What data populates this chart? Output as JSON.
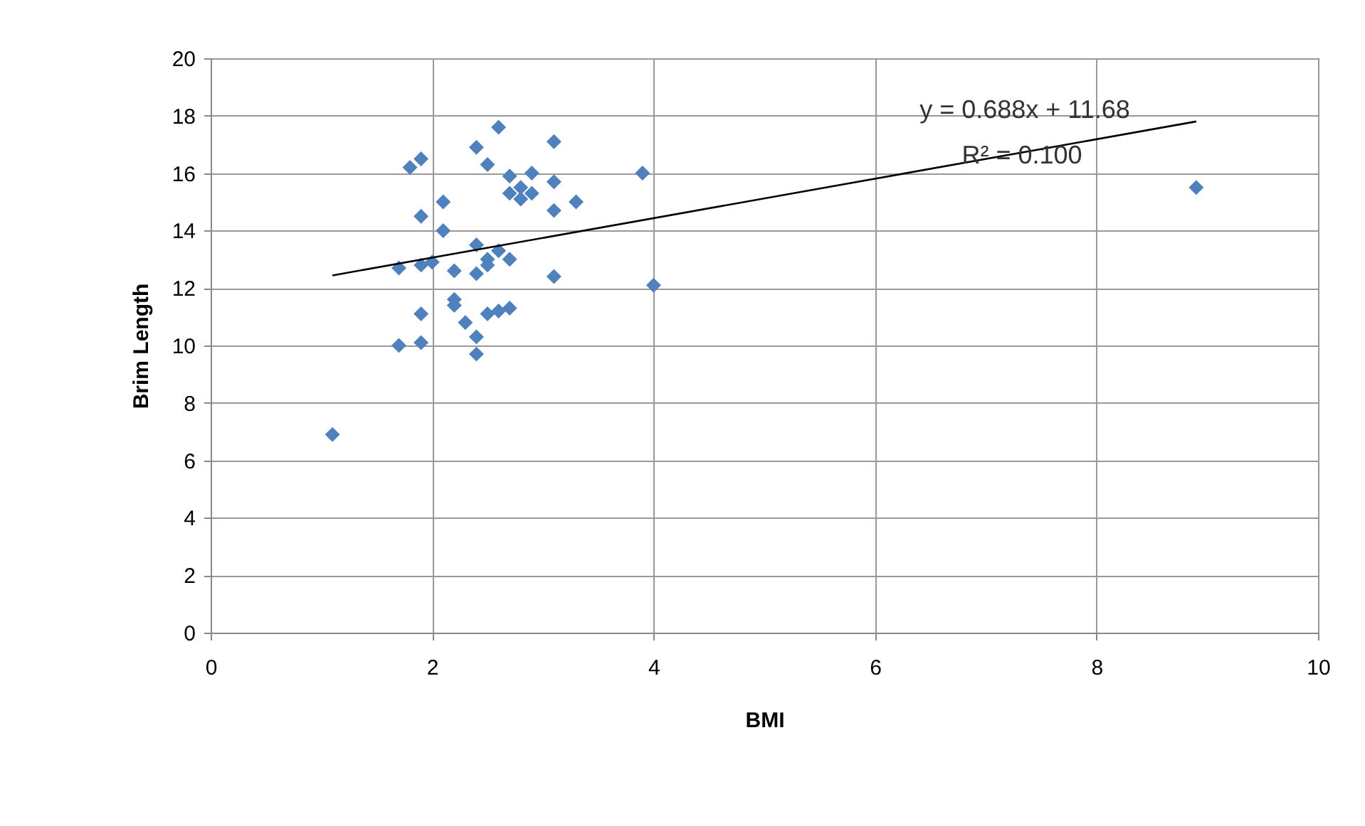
{
  "chart_data": {
    "type": "scatter",
    "xlabel": "BMI",
    "ylabel": "Brim Length",
    "xlim": [
      0,
      10
    ],
    "xticks": [
      0,
      2,
      4,
      6,
      8,
      10
    ],
    "ylim": [
      0,
      20
    ],
    "yticks": [
      0,
      2,
      4,
      6,
      8,
      10,
      12,
      14,
      16,
      18,
      20
    ],
    "grid": true,
    "marker": "diamond",
    "series": [
      {
        "type": "scatter",
        "color": "#4f81bd",
        "x": [
          1.1,
          1.7,
          1.7,
          1.8,
          1.9,
          1.9,
          1.9,
          1.9,
          1.9,
          2.0,
          2.1,
          2.1,
          2.2,
          2.2,
          2.2,
          2.3,
          2.4,
          2.4,
          2.4,
          2.4,
          2.4,
          2.5,
          2.5,
          2.5,
          2.5,
          2.6,
          2.6,
          2.6,
          2.7,
          2.7,
          2.7,
          2.7,
          2.8,
          2.8,
          2.9,
          2.9,
          3.1,
          3.1,
          3.1,
          3.1,
          3.3,
          3.9,
          4.0,
          8.9
        ],
        "values": [
          6.9,
          12.7,
          10.0,
          16.2,
          16.5,
          14.5,
          12.8,
          11.1,
          10.1,
          12.9,
          15.0,
          14.0,
          12.6,
          11.6,
          11.4,
          10.8,
          10.3,
          9.7,
          13.5,
          12.5,
          16.9,
          16.3,
          11.1,
          13.0,
          12.8,
          17.6,
          13.3,
          11.2,
          15.9,
          15.3,
          13.0,
          11.3,
          15.5,
          15.1,
          16.0,
          15.3,
          17.1,
          15.7,
          14.7,
          12.4,
          15.0,
          16.0,
          12.1,
          15.5
        ]
      },
      {
        "type": "line",
        "color": "#000000",
        "line_style": "solid",
        "marker": "none",
        "x": [
          1.1,
          8.9
        ],
        "values": [
          12.44,
          17.8
        ]
      }
    ],
    "annotations": [
      "y = 0.688x + 11.68",
      "R² = 0.100"
    ]
  }
}
